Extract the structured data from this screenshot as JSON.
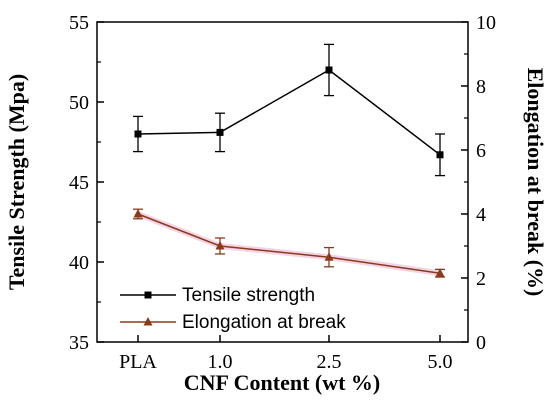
{
  "chart_data": {
    "type": "line",
    "categories": [
      "PLA",
      "1.0",
      "2.5",
      "5.0"
    ],
    "xlabel": "CNF Content (wt %)",
    "ylabel_left": "Tensile Strength (Mpa)",
    "ylabel_right": "Elongation at break (%)",
    "ylim_left": [
      35,
      55
    ],
    "yticks_left": [
      35,
      40,
      45,
      50,
      55
    ],
    "ylim_right": [
      0,
      10
    ],
    "yticks_right": [
      0,
      2,
      4,
      6,
      8,
      10
    ],
    "grid": false,
    "legend_position": "bottom-left",
    "series": [
      {
        "name": "Tensile strength",
        "axis": "left",
        "values": [
          48.0,
          48.1,
          52.0,
          46.7
        ],
        "errors": [
          1.1,
          1.2,
          1.6,
          1.3
        ],
        "marker": "square",
        "color": "#000000"
      },
      {
        "name": "Elongation at break",
        "axis": "right",
        "values": [
          4.0,
          3.0,
          2.65,
          2.15
        ],
        "errors": [
          0.15,
          0.25,
          0.3,
          0.12
        ],
        "marker": "triangle",
        "color": "#8b3a1a",
        "halo_color": "#f3d4e6"
      }
    ]
  }
}
